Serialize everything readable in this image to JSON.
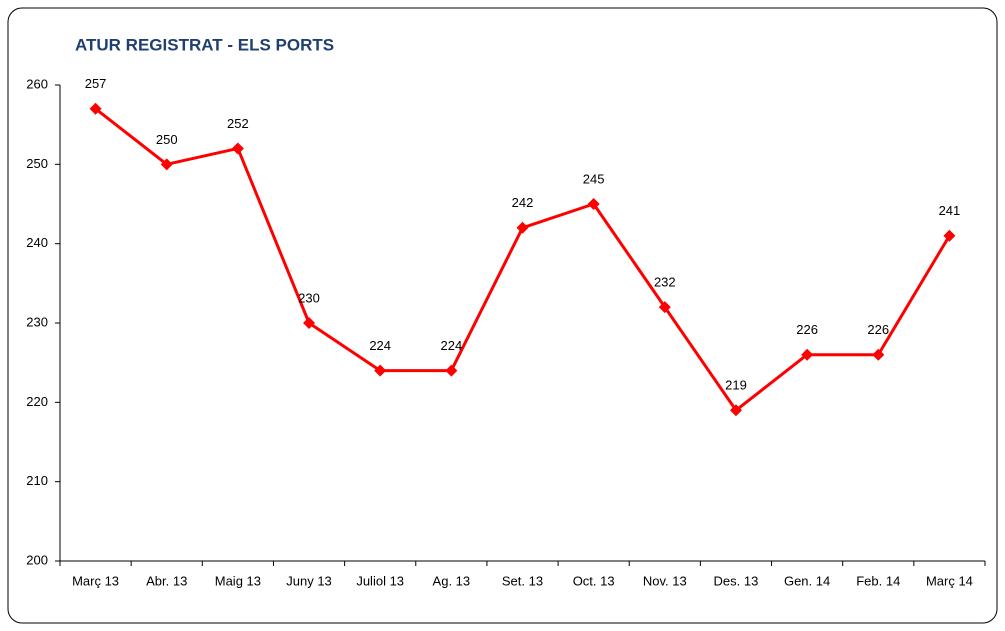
{
  "chart_data": {
    "type": "line",
    "title": "ATUR REGISTRAT - ELS PORTS",
    "categories": [
      "Març 13",
      "Abr. 13",
      "Maig 13",
      "Juny 13",
      "Juliol 13",
      "Ag. 13",
      "Set. 13",
      "Oct. 13",
      "Nov. 13",
      "Des. 13",
      "Gen. 14",
      "Feb. 14",
      "Març 14"
    ],
    "values": [
      257,
      250,
      252,
      230,
      224,
      224,
      242,
      245,
      232,
      219,
      226,
      226,
      241
    ],
    "color": "#ff0000",
    "ylim": [
      200,
      260
    ],
    "yticks": [
      200,
      210,
      220,
      230,
      240,
      250,
      260
    ],
    "grid": false
  }
}
